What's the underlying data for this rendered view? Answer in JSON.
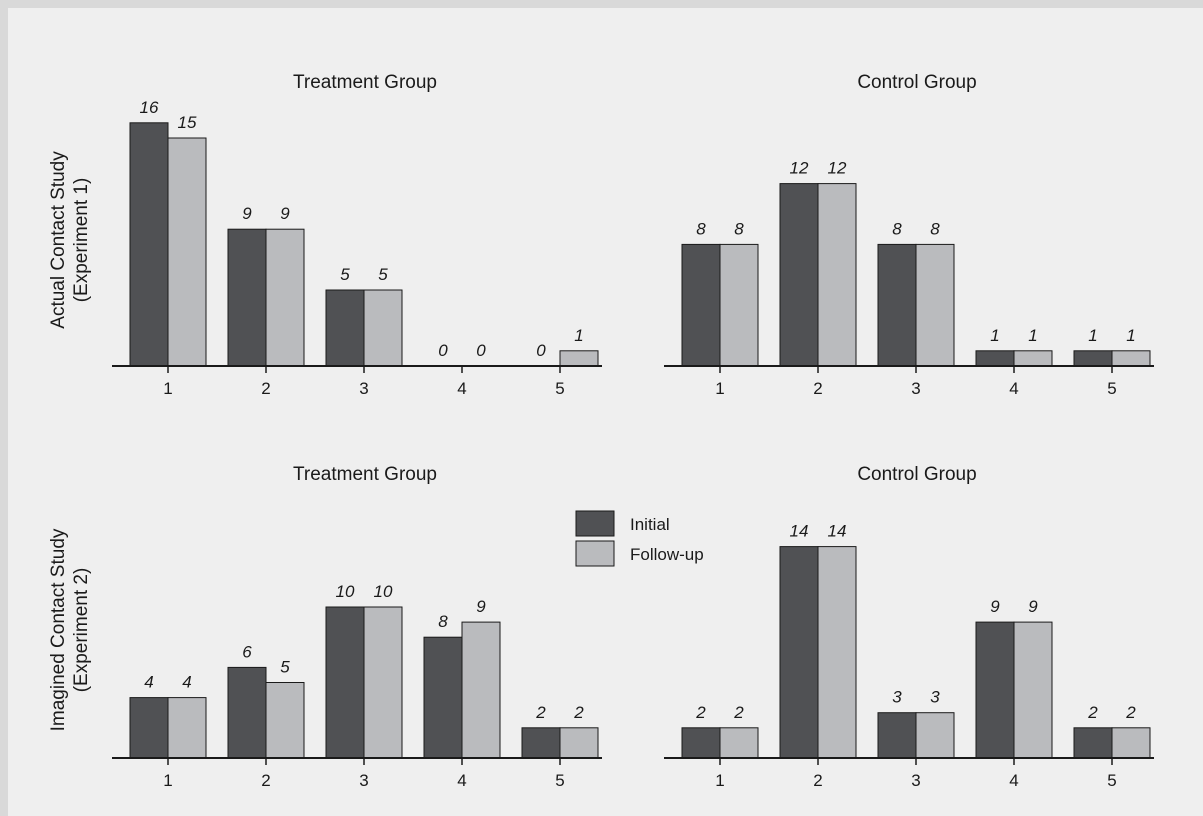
{
  "row_labels": [
    [
      "Actual Contact Study",
      "(Experiment 1)"
    ],
    [
      "Imagined Contact Study",
      "(Experiment 2)"
    ]
  ],
  "legend": {
    "items": [
      {
        "label": "Initial",
        "color": "#505154"
      },
      {
        "label": "Follow-up",
        "color": "#babbbe"
      }
    ]
  },
  "colors": {
    "initial": "#505154",
    "followup": "#babbbe",
    "axis": "#1a1a1a",
    "frame": "#d9d9d9",
    "background": "#efefef"
  },
  "chart_data": [
    {
      "type": "bar",
      "title": "Treatment Group",
      "categories": [
        "1",
        "2",
        "3",
        "4",
        "5"
      ],
      "series": [
        {
          "name": "Initial",
          "values": [
            16,
            9,
            5,
            0,
            0
          ]
        },
        {
          "name": "Follow-up",
          "values": [
            15,
            9,
            5,
            0,
            1
          ]
        }
      ],
      "ylim": [
        0,
        16
      ]
    },
    {
      "type": "bar",
      "title": "Control Group",
      "categories": [
        "1",
        "2",
        "3",
        "4",
        "5"
      ],
      "series": [
        {
          "name": "Initial",
          "values": [
            8,
            12,
            8,
            1,
            1
          ]
        },
        {
          "name": "Follow-up",
          "values": [
            8,
            12,
            8,
            1,
            1
          ]
        }
      ],
      "ylim": [
        0,
        16
      ]
    },
    {
      "type": "bar",
      "title": "Treatment Group",
      "categories": [
        "1",
        "2",
        "3",
        "4",
        "5"
      ],
      "series": [
        {
          "name": "Initial",
          "values": [
            4,
            6,
            10,
            8,
            2
          ]
        },
        {
          "name": "Follow-up",
          "values": [
            4,
            5,
            10,
            9,
            2
          ]
        }
      ],
      "ylim": [
        0,
        14
      ]
    },
    {
      "type": "bar",
      "title": "Control Group",
      "categories": [
        "1",
        "2",
        "3",
        "4",
        "5"
      ],
      "series": [
        {
          "name": "Initial",
          "values": [
            2,
            14,
            3,
            9,
            2
          ]
        },
        {
          "name": "Follow-up",
          "values": [
            2,
            14,
            3,
            9,
            2
          ]
        }
      ],
      "ylim": [
        0,
        14
      ]
    }
  ]
}
